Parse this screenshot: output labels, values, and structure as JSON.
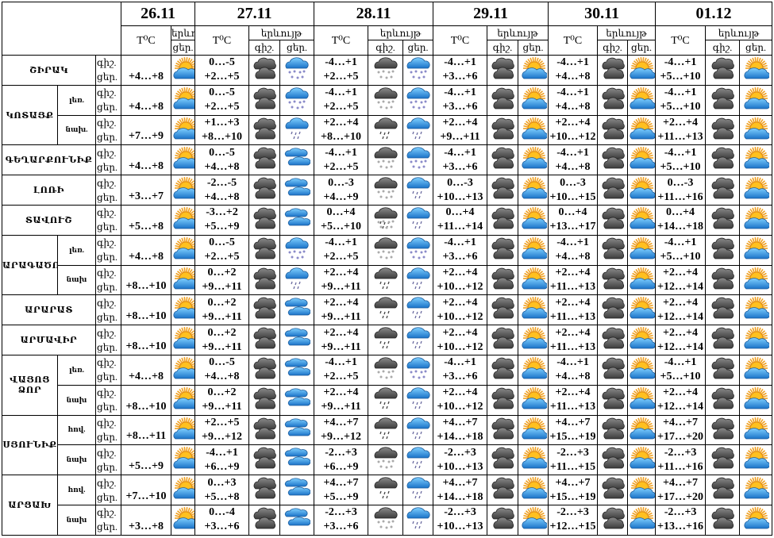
{
  "header": {
    "dates": [
      "26.11",
      "27.11",
      "28.11",
      "29.11",
      "30.11",
      "01.12"
    ],
    "temp_label": "T⁰C",
    "phenomenon_label": "երևույթ",
    "night_label": "գիշ.",
    "day_label": "ցեր."
  },
  "icon_legend": {
    "SC": "sun-behind-cloud-icon",
    "DC": "dark-clouds-icon",
    "BS": "blue-cloud-snow-icon",
    "BR": "blue-cloud-rain-icon",
    "BC": "blue-clouds-icon",
    "DS": "dark-cloud-snow-icon",
    "DR": "dark-cloud-rain-icon",
    "DSL": "dark-cloud-sleet-icon"
  },
  "rows": [
    {
      "region": "ՇԻՐԱԿ",
      "sub": "",
      "t26": "+4…+8",
      "i26": "SC",
      "d": [
        [
          "0…-5",
          "+2…+5",
          "DC",
          "BS"
        ],
        [
          "-4…+1",
          "+2…+5",
          "DS",
          "BS"
        ],
        [
          "-4…+1",
          "+3…+6",
          "DC",
          "SC"
        ],
        [
          "-4…+1",
          "+4…+8",
          "DC",
          "SC"
        ],
        [
          "-4…+1",
          "+5…+10",
          "DC",
          "SC"
        ]
      ]
    },
    {
      "region": "ԿՈՏԱՅՔ",
      "sub": "լեռ.",
      "t26": "+4…+8",
      "i26": "SC",
      "d": [
        [
          "0…-5",
          "+2…+5",
          "DC",
          "BS"
        ],
        [
          "-4…+1",
          "+2…+5",
          "DS",
          "BS"
        ],
        [
          "-4…+1",
          "+3…+6",
          "DC",
          "SC"
        ],
        [
          "-4…+1",
          "+4…+8",
          "DC",
          "SC"
        ],
        [
          "-4…+1",
          "+5…+10",
          "DC",
          "SC"
        ]
      ]
    },
    {
      "region": "ԿՈՏԱՅՔ",
      "sub": "նախ.",
      "t26": "+7…+9",
      "i26": "SC",
      "d": [
        [
          "+1…+3",
          "+8…+10",
          "DC",
          "BR"
        ],
        [
          "+2…+4",
          "+8…+10",
          "DR",
          "BR"
        ],
        [
          "+2…+4",
          "+9…+11",
          "DC",
          "SC"
        ],
        [
          "+2…+4",
          "+10…+12",
          "DC",
          "SC"
        ],
        [
          "+2…+4",
          "+11…+13",
          "DC",
          "SC"
        ]
      ]
    },
    {
      "region": "ԳԵՂԱՐՔՈՒՆԻՔ",
      "sub": "",
      "t26": "+4…+8",
      "i26": "SC",
      "d": [
        [
          "0…-5",
          "+4…+8",
          "DC",
          "BC"
        ],
        [
          "-4…+1",
          "+2…+5",
          "DS",
          "BS"
        ],
        [
          "-4…+1",
          "+3…+6",
          "DC",
          "SC"
        ],
        [
          "-4…+1",
          "+4…+8",
          "DC",
          "SC"
        ],
        [
          "-4…+1",
          "+5…+10",
          "DC",
          "SC"
        ]
      ]
    },
    {
      "region": "ԼՈՌԻ",
      "sub": "",
      "t26": "+3…+7",
      "i26": "SC",
      "d": [
        [
          "-2…-5",
          "+4…+8",
          "DC",
          "BC"
        ],
        [
          "0…-3",
          "+4…+9",
          "DS",
          "BR"
        ],
        [
          "0…-3",
          "+10…+13",
          "DC",
          "SC"
        ],
        [
          "0…-3",
          "+10…+15",
          "DC",
          "SC"
        ],
        [
          "0…-3",
          "+11…+16",
          "DC",
          "SC"
        ]
      ]
    },
    {
      "region": "ՏԱՎՈՒՇ",
      "sub": "",
      "t26": "+5…+8",
      "i26": "SC",
      "d": [
        [
          "-3…+2",
          "+5…+9",
          "DC",
          "BC"
        ],
        [
          "0…+4",
          "+5…+10",
          "DSL",
          "BR"
        ],
        [
          "0…+4",
          "+11…+14",
          "DC",
          "SC"
        ],
        [
          "0…+4",
          "+13…+17",
          "DC",
          "SC"
        ],
        [
          "0…+4",
          "+14…+18",
          "DC",
          "SC"
        ]
      ]
    },
    {
      "region": "ԱՐԱԳԱԾՈՏՆ",
      "sub": "լեռ.",
      "t26": "+4…+8",
      "i26": "SC",
      "d": [
        [
          "0…-5",
          "+2…+5",
          "DC",
          "BS"
        ],
        [
          "-4…+1",
          "+2…+5",
          "DS",
          "BS"
        ],
        [
          "-4…+1",
          "+3…+6",
          "DC",
          "SC"
        ],
        [
          "-4…+1",
          "+4…+8",
          "DC",
          "SC"
        ],
        [
          "-4…+1",
          "+5…+10",
          "DC",
          "SC"
        ]
      ]
    },
    {
      "region": "ԱՐԱԳԱԾՈՏՆ",
      "sub": "նախ",
      "t26": "+8…+10",
      "i26": "SC",
      "d": [
        [
          "0…+2",
          "+9…+11",
          "DC",
          "BR"
        ],
        [
          "+2…+4",
          "+9…+11",
          "DR",
          "BR"
        ],
        [
          "+2…+4",
          "+10…+12",
          "DC",
          "SC"
        ],
        [
          "+2…+4",
          "+11…+13",
          "DC",
          "SC"
        ],
        [
          "+2…+4",
          "+12…+14",
          "DC",
          "SC"
        ]
      ]
    },
    {
      "region": "ԱՐԱՐԱՏ",
      "sub": "",
      "t26": "+8…+10",
      "i26": "SC",
      "d": [
        [
          "0…+2",
          "+9…+11",
          "DC",
          "BC"
        ],
        [
          "+2…+4",
          "+9…+11",
          "DR",
          "BR"
        ],
        [
          "+2…+4",
          "+10…+12",
          "DC",
          "SC"
        ],
        [
          "+2…+4",
          "+11…+13",
          "DC",
          "SC"
        ],
        [
          "+2…+4",
          "+12…+14",
          "DC",
          "SC"
        ]
      ]
    },
    {
      "region": "ԱՐՄԱՎԻՐ",
      "sub": "",
      "t26": "+8…+10",
      "i26": "SC",
      "d": [
        [
          "0…+2",
          "+9…+11",
          "DC",
          "BC"
        ],
        [
          "+2…+4",
          "+9…+11",
          "DR",
          "BR"
        ],
        [
          "+2…+4",
          "+10…+12",
          "DC",
          "SC"
        ],
        [
          "+2…+4",
          "+11…+13",
          "DC",
          "SC"
        ],
        [
          "+2…+4",
          "+12…+14",
          "DC",
          "SC"
        ]
      ]
    },
    {
      "region": "ՎԱՅՈՑ ՁՈՐ",
      "sub": "լեռ.",
      "t26": "+4…+8",
      "i26": "SC",
      "d": [
        [
          "0…-5",
          "+4…+8",
          "DC",
          "BC"
        ],
        [
          "-4…+1",
          "+2…+5",
          "DS",
          "BS"
        ],
        [
          "-4…+1",
          "+3…+6",
          "DC",
          "SC"
        ],
        [
          "-4…+1",
          "+4…+8",
          "DC",
          "SC"
        ],
        [
          "-4…+1",
          "+5…+10",
          "DC",
          "SC"
        ]
      ]
    },
    {
      "region": "ՎԱՅՈՑ ՁՈՐ",
      "sub": "նախ",
      "t26": "+8…+10",
      "i26": "SC",
      "d": [
        [
          "0…+2",
          "+9…+11",
          "DC",
          "BC"
        ],
        [
          "+2…+4",
          "+9…+11",
          "DR",
          "BR"
        ],
        [
          "+2…+4",
          "+10…+12",
          "DC",
          "SC"
        ],
        [
          "+2…+4",
          "+11…+13",
          "DC",
          "SC"
        ],
        [
          "+2…+4",
          "+12…+14",
          "DC",
          "SC"
        ]
      ]
    },
    {
      "region": "ՍՅՈՒՆԻՔ",
      "sub": "հով.",
      "t26": "+8…+11",
      "i26": "SC",
      "d": [
        [
          "+2…+5",
          "+9…+12",
          "DC",
          "BC"
        ],
        [
          "+4…+7",
          "+9…+12",
          "DR",
          "BR"
        ],
        [
          "+4…+7",
          "+14…+18",
          "DC",
          "SC"
        ],
        [
          "+4…+7",
          "+15…+19",
          "DC",
          "SC"
        ],
        [
          "+4…+7",
          "+17…+20",
          "DC",
          "SC"
        ]
      ]
    },
    {
      "region": "ՍՅՈՒՆԻՔ",
      "sub": "նախ",
      "t26": "+5…+9",
      "i26": "SC",
      "d": [
        [
          "-4…+1",
          "+6…+9",
          "DC",
          "BC"
        ],
        [
          "-2…+3",
          "+6…+9",
          "DS",
          "BR"
        ],
        [
          "-2…+3",
          "+10…+13",
          "DC",
          "SC"
        ],
        [
          "-2…+3",
          "+11…+15",
          "DC",
          "SC"
        ],
        [
          "-2…+3",
          "+11…+16",
          "DC",
          "SC"
        ]
      ]
    },
    {
      "region": "ԱՐՑԱԽ",
      "sub": "հով.",
      "t26": "+7…+10",
      "i26": "SC",
      "d": [
        [
          "0…+3",
          "+5…+8",
          "DC",
          "BC"
        ],
        [
          "+4…+7",
          "+5…+9",
          "DR",
          "BR"
        ],
        [
          "+4…+7",
          "+14…+18",
          "DC",
          "SC"
        ],
        [
          "+4…+7",
          "+15…+19",
          "DC",
          "SC"
        ],
        [
          "+4…+7",
          "+17…+20",
          "DC",
          "SC"
        ]
      ]
    },
    {
      "region": "ԱՐՑԱԽ",
      "sub": "նախ",
      "t26": "+3…+8",
      "i26": "SC",
      "d": [
        [
          "0…-4",
          "+3…+6",
          "DC",
          "BC"
        ],
        [
          "-2…+3",
          "+3…+6",
          "DS",
          "BR"
        ],
        [
          "-2…+3",
          "+10…+13",
          "DC",
          "SC"
        ],
        [
          "-2…+3",
          "+12…+15",
          "DC",
          "SC"
        ],
        [
          "-2…+3",
          "+13…+16",
          "DC",
          "SC"
        ]
      ]
    }
  ]
}
